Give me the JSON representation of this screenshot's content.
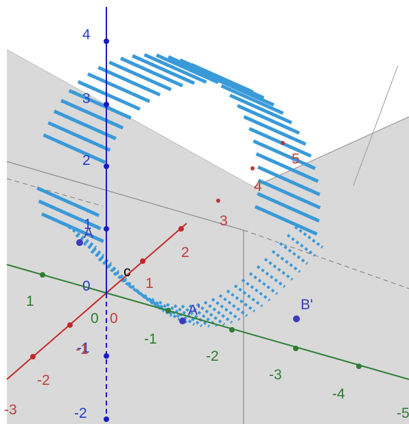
{
  "view": {
    "background": "#ffffff",
    "plane_color": "#d9d9d9",
    "surface_color": "#3a9ad9"
  },
  "axes": {
    "z": {
      "color": "#1a1ac0",
      "ticks": [
        "4",
        "3",
        "2",
        "1",
        "0",
        "-1",
        "-2"
      ]
    },
    "x": {
      "color": "#c62828",
      "ticks": [
        "2",
        "1",
        "0",
        "-1",
        "-2",
        "-3"
      ]
    },
    "y": {
      "color": "#2e7d32",
      "ticks": [
        "1",
        "0",
        "-1",
        "-2",
        "-3",
        "-4",
        "-5"
      ]
    }
  },
  "points": {
    "A": "A",
    "A_prime": "A'",
    "B_prime": "B'",
    "c": "c"
  },
  "surface_labels": [
    "5",
    "4",
    "3"
  ]
}
